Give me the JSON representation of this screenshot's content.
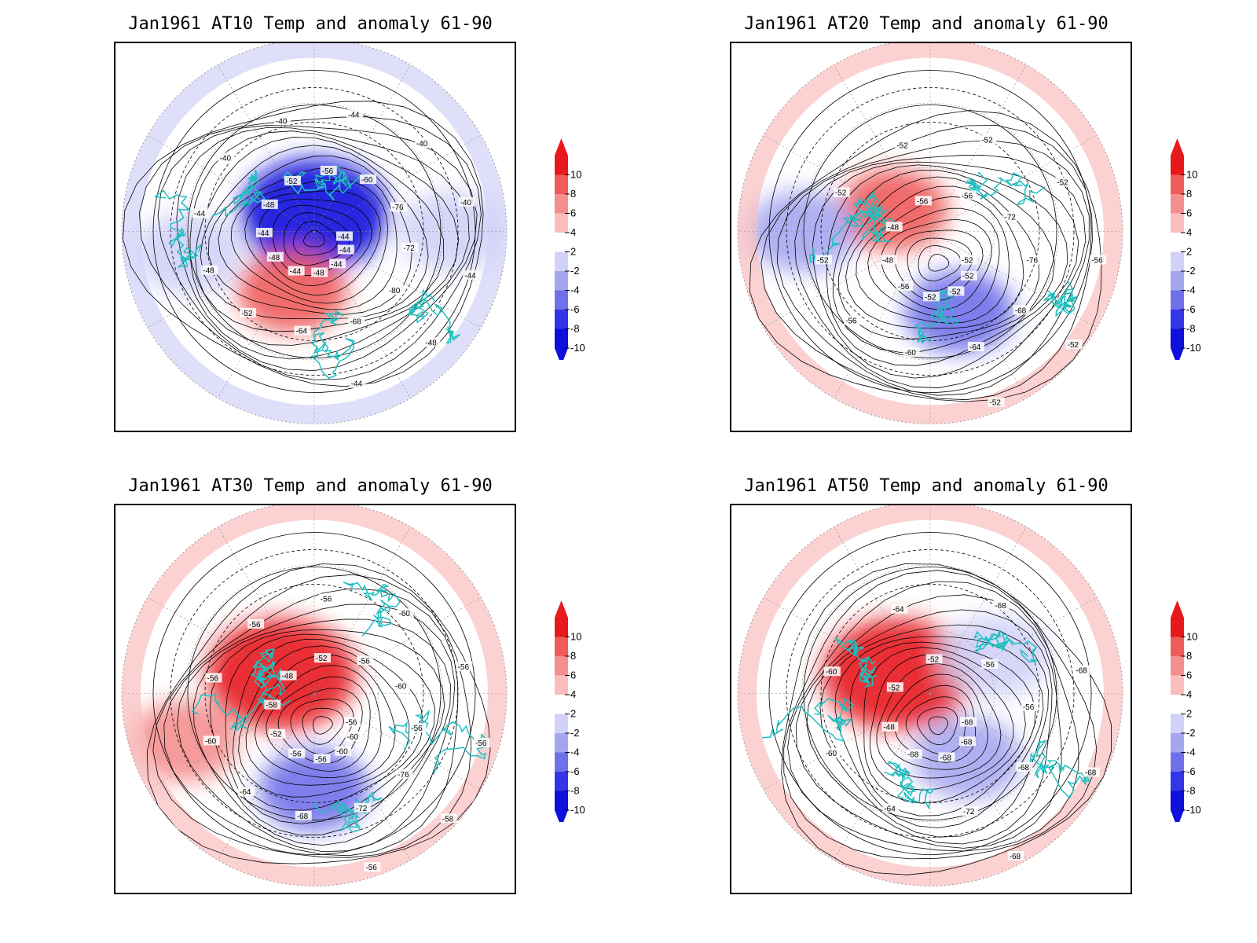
{
  "figure": {
    "panels": [
      {
        "title": "Jan1961 AT10 Temp and anomaly 61-90",
        "contour_labels": [
          "-44",
          "-44",
          "-44",
          "-48",
          "-44",
          "-48",
          "-44",
          "-48",
          "-52",
          "-56",
          "-60",
          "-76",
          "-72",
          "-80",
          "-68",
          "-64",
          "-52",
          "-48",
          "-44",
          "-40",
          "-40",
          "-44",
          "-40",
          "-40",
          "-44",
          "-48",
          "-44"
        ],
        "anomaly_blobs": [
          {
            "lon_deg": 0,
            "lat_deg": 82,
            "value": -10
          },
          {
            "lon_deg": 200,
            "lat_deg": 60,
            "value": 6
          },
          {
            "lon_deg": 260,
            "lat_deg": 30,
            "value": -2
          },
          {
            "lon_deg": 90,
            "lat_deg": 25,
            "value": -2
          }
        ]
      },
      {
        "title": "Jan1961 AT20 Temp and anomaly 61-90",
        "contour_labels": [
          "-52",
          "-52",
          "-52",
          "-52",
          "-56",
          "-48",
          "-48",
          "-56",
          "-56",
          "-72",
          "-76",
          "-68",
          "-64",
          "-60",
          "-56",
          "-52",
          "-52",
          "-52",
          "-52",
          "-52",
          "-56",
          "-52",
          "-52"
        ],
        "anomaly_blobs": [
          {
            "lon_deg": 160,
            "lat_deg": 50,
            "value": -6
          },
          {
            "lon_deg": 300,
            "lat_deg": 70,
            "value": 6
          },
          {
            "lon_deg": 270,
            "lat_deg": 30,
            "value": -4
          }
        ]
      },
      {
        "title": "Jan1961 AT30 Temp and anomaly 61-90",
        "contour_labels": [
          "-56",
          "-60",
          "-60",
          "-56",
          "-56",
          "-52",
          "-58",
          "-48",
          "-52",
          "-56",
          "-60",
          "-56",
          "-76",
          "-72",
          "-68",
          "-64",
          "-60",
          "-56",
          "-56",
          "-56",
          "-60",
          "-56",
          "-56",
          "-58",
          "-56"
        ],
        "anomaly_blobs": [
          {
            "lon_deg": 180,
            "lat_deg": 45,
            "value": -6
          },
          {
            "lon_deg": 300,
            "lat_deg": 72,
            "value": 8
          },
          {
            "lon_deg": 250,
            "lat_deg": 25,
            "value": 4
          }
        ]
      },
      {
        "title": "Jan1961 AT50 Temp and anomaly 61-90",
        "contour_labels": [
          "-68",
          "-68",
          "-68",
          "-68",
          "-48",
          "-52",
          "-52",
          "-56",
          "-56",
          "-68",
          "-72",
          "-64",
          "-60",
          "-60",
          "-64",
          "-68",
          "-68",
          "-68",
          "-68"
        ],
        "anomaly_blobs": [
          {
            "lon_deg": 300,
            "lat_deg": 72,
            "value": 8
          },
          {
            "lon_deg": 150,
            "lat_deg": 55,
            "value": -4
          },
          {
            "lon_deg": 60,
            "lat_deg": 55,
            "value": -2
          }
        ]
      }
    ],
    "colorbar": {
      "ticks": [
        "10",
        "8",
        "6",
        "4",
        "2",
        "-2",
        "-4",
        "-6",
        "-8",
        "-10"
      ],
      "colors": [
        "#e8191c",
        "#f05b5b",
        "#f58f8f",
        "#fabebe",
        "#ffffff",
        "#d2d2f8",
        "#a6a6f0",
        "#7070ea",
        "#3434e8",
        "#1010dd"
      ],
      "top_arrow_color": "#e8191c",
      "bottom_arrow_color": "#1010dd"
    },
    "coastline_color": "#1fbfbf",
    "contour_color": "#000000",
    "graticule_color": "#888888"
  }
}
